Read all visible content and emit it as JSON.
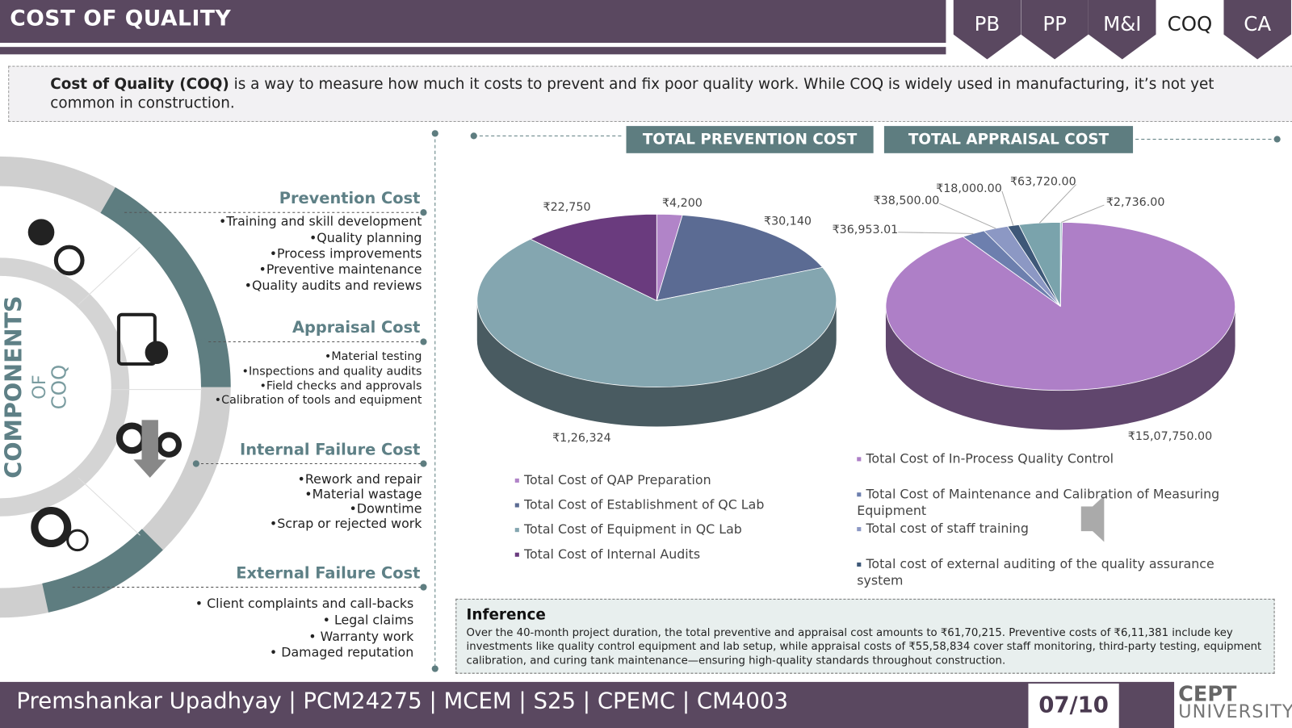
{
  "header": {
    "title": "COST OF QUALITY",
    "tabs": [
      "PB",
      "PP",
      "M&I",
      "COQ",
      "CA"
    ],
    "active_tab": 3
  },
  "intro": {
    "term": "Cost of Quality (COQ)",
    "text": " is a way to measure how much it costs to prevent and fix poor quality work. While COQ is widely used in manufacturing, it’s not yet common in construction."
  },
  "components": {
    "title": "COMPONENTS",
    "of": "OF",
    "coq": "COQ",
    "items": [
      {
        "heading": "Prevention Cost",
        "bullets": [
          "•Training and skill development",
          "•Quality planning",
          "•Process improvements",
          "•Preventive maintenance",
          "•Quality audits and reviews"
        ]
      },
      {
        "heading": "Appraisal Cost",
        "bullets": [
          "•Material testing",
          "•Inspections and quality audits",
          "•Field checks and approvals",
          "•Calibration of tools and equipment"
        ]
      },
      {
        "heading": "Internal Failure Cost",
        "bullets": [
          "•Rework and repair",
          "•Material wastage",
          "•Downtime",
          "•Scrap or rejected work"
        ]
      },
      {
        "heading": "External Failure Cost",
        "bullets": [
          "•  Client complaints and call-backs",
          "•  Legal claims",
          "•  Warranty work",
          "•  Damaged reputation"
        ]
      }
    ]
  },
  "chart_data": [
    {
      "type": "pie",
      "title": "TOTAL PREVENTION COST",
      "categories": [
        "Total Cost of QAP Preparation",
        "Total Cost of Establishment of QC Lab",
        "Total Cost of Equipment in QC Lab",
        "Total Cost of Internal Audits"
      ],
      "values": [
        4200,
        30140,
        126324,
        22750
      ],
      "value_labels": [
        "₹4,200",
        "₹30,140",
        "₹1,26,324",
        "₹22,750"
      ],
      "colors": [
        "#b184c8",
        "#5b6b93",
        "#84a6b0",
        "#6a3b7e"
      ]
    },
    {
      "type": "pie",
      "title": "TOTAL APPRAISAL COST",
      "categories": [
        "Total Cost of In-Process Quality Control",
        "Total Cost of Maintenance and Calibration of Measuring Equipment",
        "Total cost of staff training",
        "Total cost of external auditing of the quality assurance system",
        null,
        null
      ],
      "values": [
        1507750,
        36953.01,
        38500,
        18000,
        63720,
        2736
      ],
      "value_labels": [
        "₹15,07,750.00",
        "₹36,953.01",
        "₹38,500.00",
        "₹18,000.00",
        "₹63,720.00",
        "₹2,736.00"
      ],
      "colors": [
        "#ae7fc7",
        "#6d7fae",
        "#8c98c4",
        "#3e5878",
        "#7aa3ac",
        "#a7c5cb"
      ]
    }
  ],
  "inference": {
    "title": "Inference",
    "text": "Over the 40-month project duration, the total preventive and appraisal cost amounts to ₹61,70,215. Preventive costs of ₹6,11,381 include key investments like quality control equipment and lab setup, while appraisal costs of ₹55,58,834 cover staff monitoring, third-party testing, equipment calibration, and curing tank maintenance—ensuring high-quality standards throughout construction."
  },
  "footer": {
    "author": "Premshankar Upadhyay | PCM24275 | MCEM | S25 | CPEMC | CM4003",
    "page": "07/10",
    "logo_top": "CEPT",
    "logo_bottom": "UNIVERSITY"
  }
}
